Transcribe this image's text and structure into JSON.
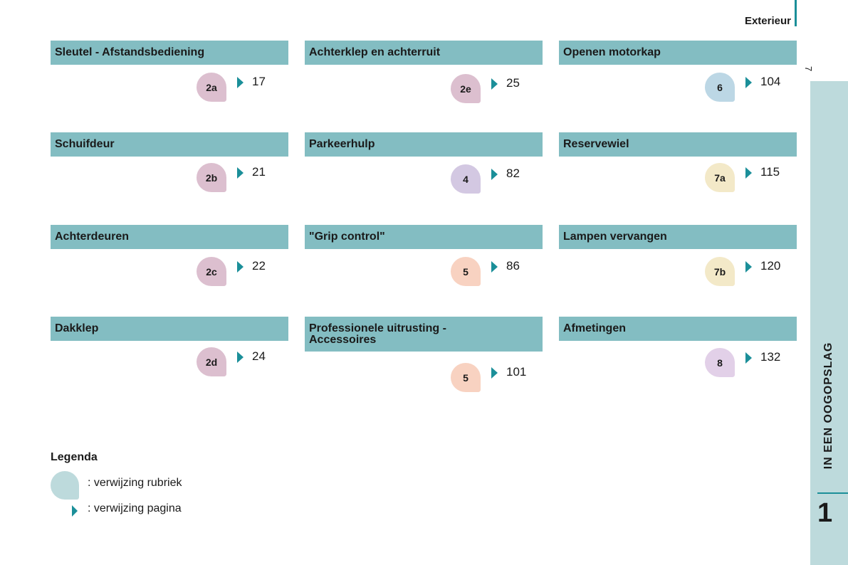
{
  "header": {
    "title": "Exterieur",
    "page_number": "7"
  },
  "side": {
    "title": "IN EEN OOGOPSLAG",
    "chapter": "1"
  },
  "colors": {
    "teal": "#1b8f99",
    "header_bg": "#83bdc2",
    "strip_bg": "#bddadc"
  },
  "sections": [
    {
      "title": "Sleutel - Afstandsbediening",
      "badge": "2a",
      "page": "17",
      "badge_color": "#dcbfcf"
    },
    {
      "title": "Schuifdeur",
      "badge": "2b",
      "page": "21",
      "badge_color": "#dcbfcf"
    },
    {
      "title": "Achterdeuren",
      "badge": "2c",
      "page": "22",
      "badge_color": "#dcbfcf"
    },
    {
      "title": "Dakklep",
      "badge": "2d",
      "page": "24",
      "badge_color": "#dcbfcf"
    },
    {
      "title": "Achterklep en achterruit",
      "badge": "2e",
      "page": "25",
      "badge_color": "#dcbfcf"
    },
    {
      "title": "Parkeerhulp",
      "badge": "4",
      "page": "82",
      "badge_color": "#d3c8e2"
    },
    {
      "title": "\"Grip control\"",
      "badge": "5",
      "page": "86",
      "badge_color": "#f8d2c1"
    },
    {
      "title_line1": "Professionele uitrusting -",
      "title_line2": "Accessoires",
      "badge": "5",
      "page": "101",
      "badge_color": "#f8d2c1"
    },
    {
      "title": "Openen motorkap",
      "badge": "6",
      "page": "104",
      "badge_color": "#bcd7e5"
    },
    {
      "title": "Reservewiel",
      "badge": "7a",
      "page": "115",
      "badge_color": "#f3e9c8"
    },
    {
      "title": "Lampen vervangen",
      "badge": "7b",
      "page": "120",
      "badge_color": "#f3e9c8"
    },
    {
      "title": "Afmetingen",
      "badge": "8",
      "page": "132",
      "badge_color": "#e2d0e8"
    }
  ],
  "legend": {
    "title": "Legenda",
    "rubriek": ": verwijzing rubriek",
    "pagina": ": verwijzing pagina"
  }
}
